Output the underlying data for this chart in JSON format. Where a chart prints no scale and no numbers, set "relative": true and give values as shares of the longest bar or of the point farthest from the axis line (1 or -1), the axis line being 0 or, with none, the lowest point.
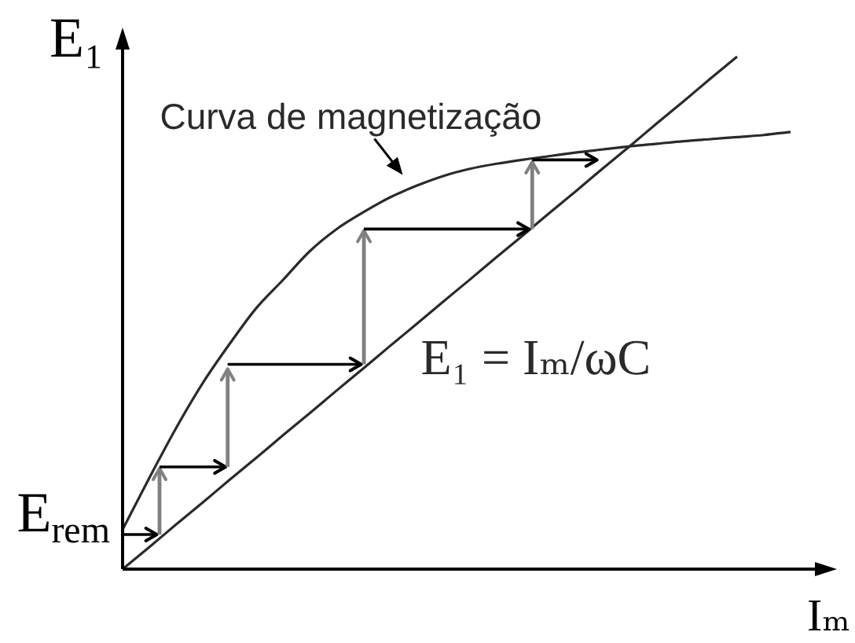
{
  "chart_data": {
    "type": "line",
    "relative": true,
    "xlabel": "Iₘ",
    "ylabel": "E₁",
    "legend": false,
    "marker": "none",
    "annotations": [
      "E$_{rem}$"
    ],
    "categories": [
      null,
      null,
      null,
      null,
      null,
      null,
      null,
      null,
      null,
      null,
      null,
      null,
      null,
      null,
      null,
      null,
      null,
      null,
      null,
      null,
      null,
      null,
      null,
      null,
      null,
      null
    ],
    "series": [
      {
        "name": "Curva de magnetização",
        "color": "#2a2a2a",
        "values": [
          0.077,
          0.178,
          0.275,
          0.363,
          0.439,
          0.509,
          0.564,
          0.62,
          0.663,
          0.696,
          0.725,
          0.748,
          0.767,
          0.781,
          0.791,
          0.799,
          0.806,
          0.813,
          0.819,
          0.825,
          0.83,
          0.835,
          0.839,
          0.843,
          0.847,
          0.853
        ]
      },
      {
        "name": "E₁ = Iₘ/ωC",
        "color": "#2a2a2a",
        "values": [
          0,
          0.043,
          0.087,
          0.13,
          0.174,
          0.217,
          0.261,
          0.304,
          0.348,
          0.391,
          0.435,
          0.478,
          0.522,
          0.565,
          0.609,
          0.652,
          0.696,
          0.739,
          0.783,
          0.826,
          0.87,
          0.913,
          0.957,
          1,
          null,
          null
        ]
      }
    ]
  }
}
